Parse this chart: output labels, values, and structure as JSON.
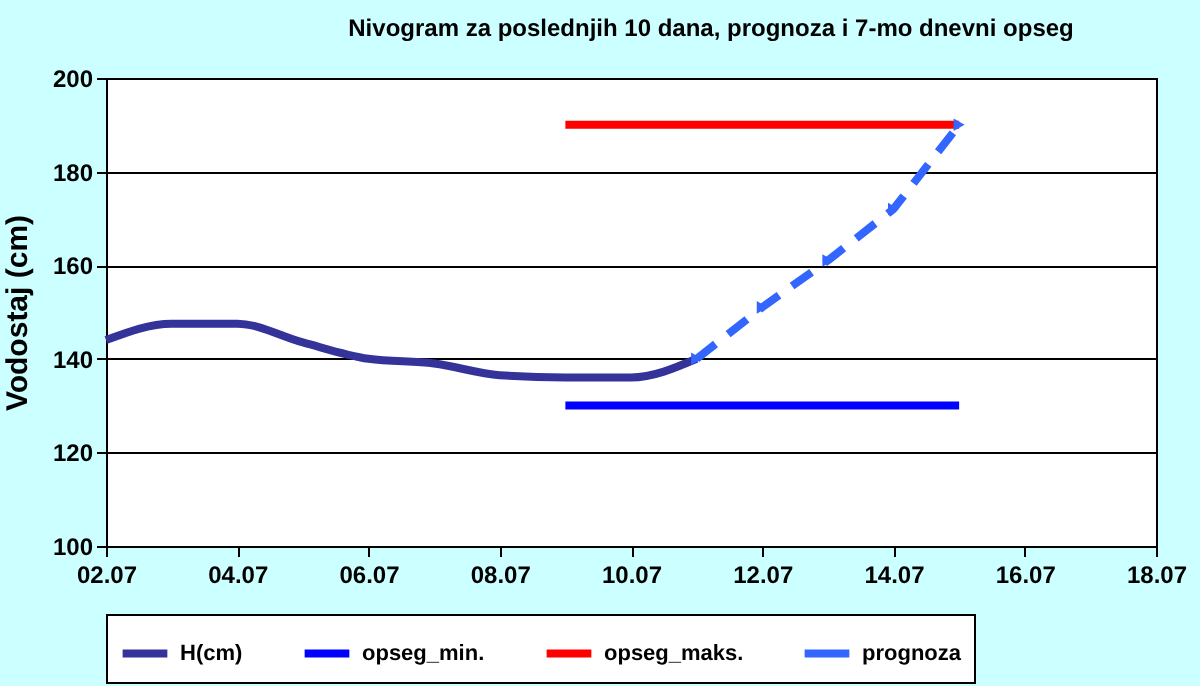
{
  "chart_data": {
    "type": "line",
    "title": "Nivogram za poslednjih 10 dana, prognoza i 7-mo dnevni opseg",
    "ylabel": "Vodostaj (cm)",
    "series": [
      {
        "name": "H(cm)",
        "color": "#333399",
        "x": [
          "--07-02",
          "--07-03",
          "--07-04",
          "--07-05",
          "--07-06",
          "--07-07",
          "--07-08",
          "--07-09",
          "--07-10",
          "--07-11"
        ],
        "values": [
          144,
          147.5,
          147.5,
          143.5,
          140,
          139,
          136.5,
          136,
          136,
          140
        ]
      },
      {
        "name": "opseg_min.",
        "color": "#0000ff",
        "x": [
          "--07-09",
          "--07-15"
        ],
        "values": [
          130,
          130
        ]
      },
      {
        "name": "opseg_maks.",
        "color": "#ff0000",
        "x": [
          "--07-09",
          "--07-15"
        ],
        "values": [
          190,
          190
        ]
      },
      {
        "name": "prognoza",
        "color": "#3366ff",
        "line_style": "dashed",
        "marker": "triangle",
        "x": [
          "--07-11",
          "--07-12",
          "--07-13",
          "--07-14",
          "--07-15"
        ],
        "values": [
          140,
          151,
          161,
          172,
          190
        ]
      }
    ],
    "xlim": [
      "--07-02",
      "--07-18"
    ],
    "xticks": [
      {
        "value": "--07-02",
        "label": "02.07"
      },
      {
        "value": "--07-04",
        "label": "04.07"
      },
      {
        "value": "--07-06",
        "label": "06.07"
      },
      {
        "value": "--07-08",
        "label": "08.07"
      },
      {
        "value": "--07-10",
        "label": "10.07"
      },
      {
        "value": "--07-12",
        "label": "12.07"
      },
      {
        "value": "--07-14",
        "label": "14.07"
      },
      {
        "value": "--07-16",
        "label": "16.07"
      },
      {
        "value": "--07-18",
        "label": "18.07"
      }
    ],
    "ylim": [
      100,
      200
    ],
    "yticks": [
      100,
      120,
      140,
      160,
      180,
      200
    ],
    "grid": "y",
    "legend": "bottom"
  }
}
